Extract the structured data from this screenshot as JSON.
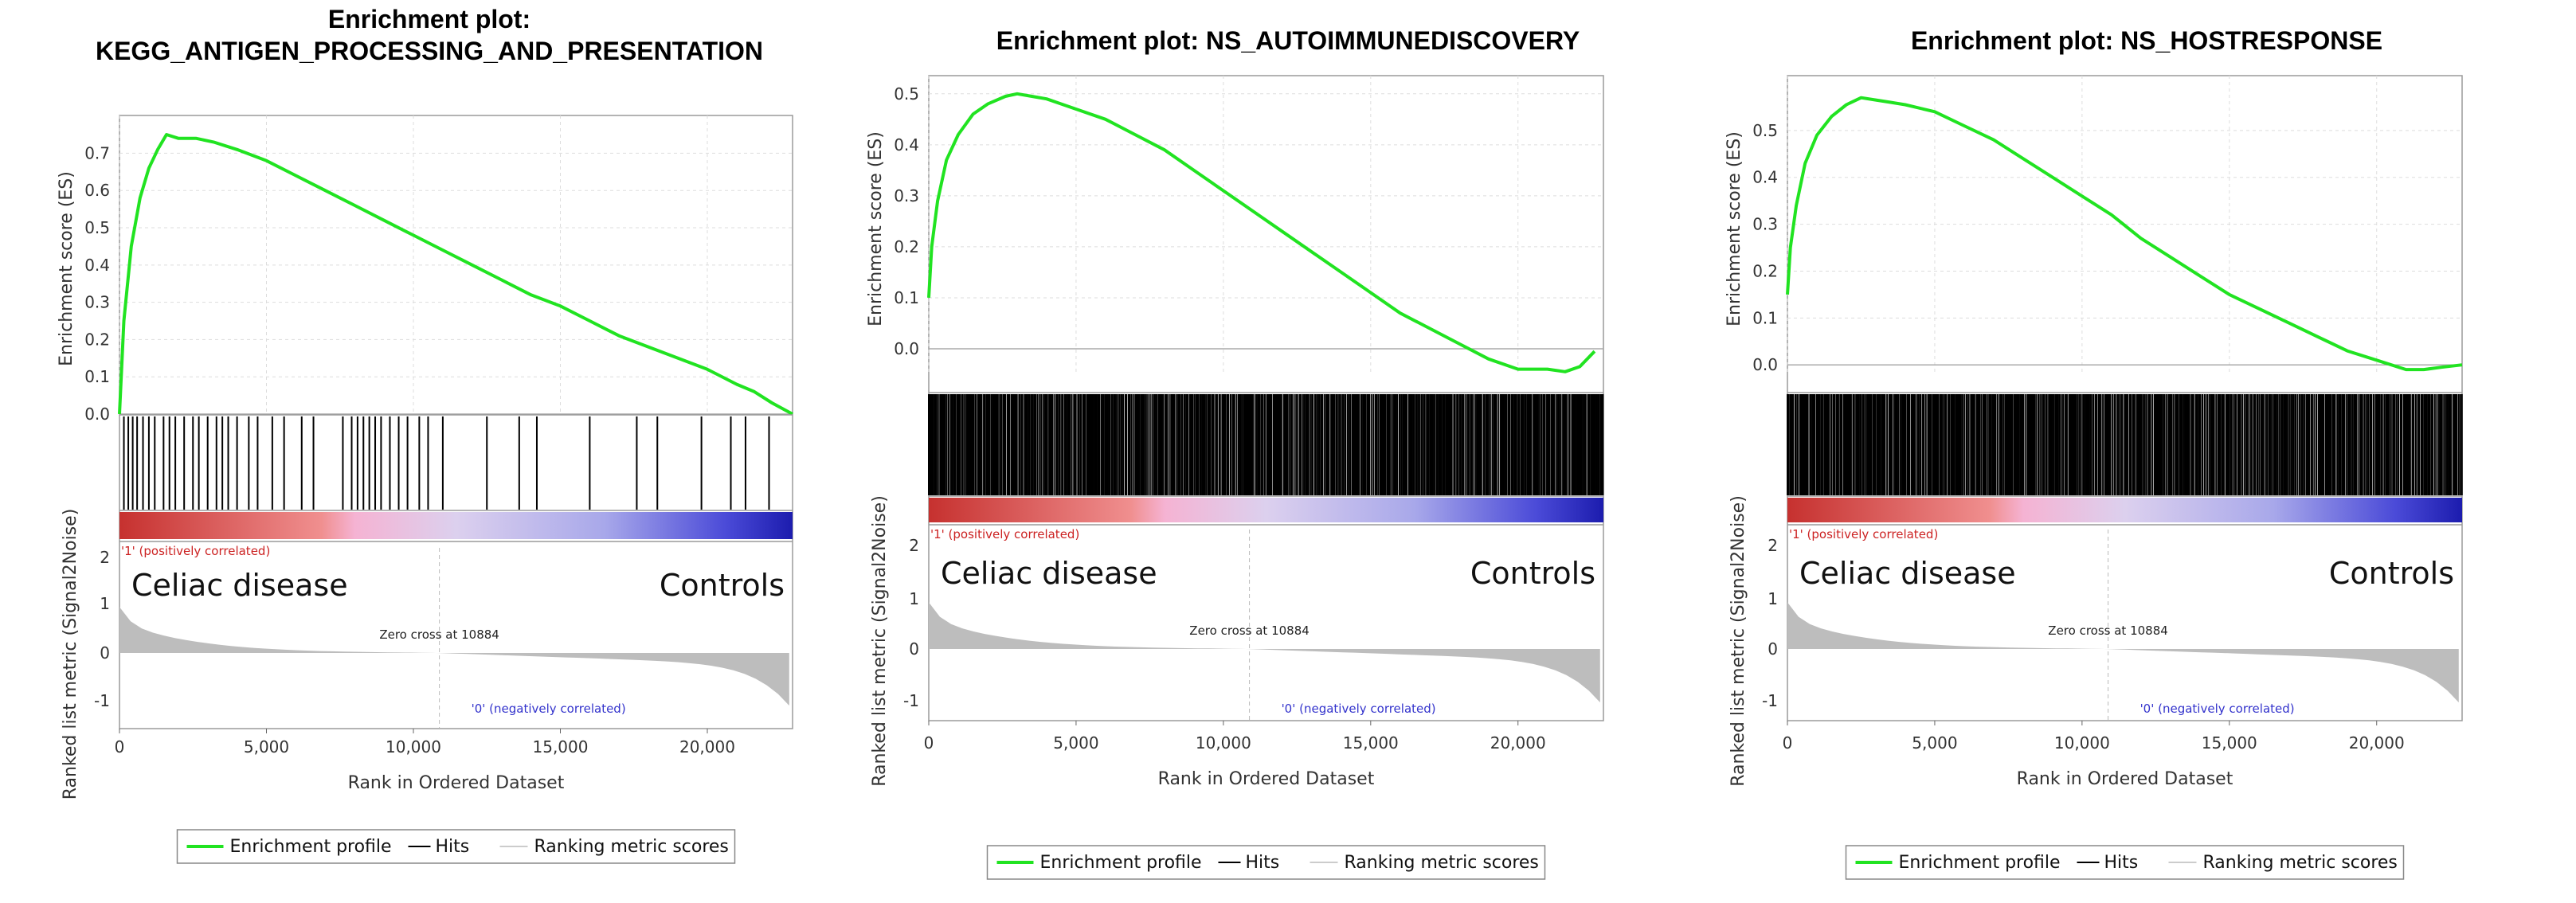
{
  "colors": {
    "profile": "#21e321",
    "hits": "#000000",
    "metric": "#bdbdbd",
    "positive_label": "#cc2222",
    "negative_label": "#3333cc"
  },
  "panels": [
    {
      "title_line1": "Enrichment plot:",
      "title_line2": "KEGG_ANTIGEN_PROCESSING_AND_PRESENTATION",
      "es_ticks": [
        "0.0",
        "0.1",
        "0.2",
        "0.3",
        "0.4",
        "0.5",
        "0.6",
        "0.7"
      ],
      "metric_ticks": [
        "2",
        "1",
        "0",
        "-1"
      ],
      "x_ticks": [
        "0",
        "5,000",
        "10,000",
        "15,000",
        "20,000"
      ],
      "ylabel_es": "Enrichment score (ES)",
      "ylabel_metric": "Ranked list metric (Signal2Noise)",
      "xlabel": "Rank in Ordered Dataset",
      "positive_label": "'1' (positively correlated)",
      "negative_label": "'0' (negatively correlated)",
      "zero_cross": "Zero cross at 10884",
      "group_left": "Celiac disease",
      "group_right": "Controls",
      "legend": [
        "Enrichment profile",
        "Hits",
        "Ranking metric scores"
      ]
    },
    {
      "title_line1": "Enrichment plot: NS_AUTOIMMUNEDISCOVERY",
      "title_line2": "",
      "es_ticks": [
        "0.0",
        "0.1",
        "0.2",
        "0.3",
        "0.4",
        "0.5"
      ],
      "metric_ticks": [
        "2",
        "1",
        "0",
        "-1"
      ],
      "x_ticks": [
        "0",
        "5,000",
        "10,000",
        "15,000",
        "20,000"
      ],
      "ylabel_es": "Enrichment score (ES)",
      "ylabel_metric": "Ranked list metric (Signal2Noise)",
      "xlabel": "Rank in Ordered Dataset",
      "positive_label": "'1' (positively correlated)",
      "negative_label": "'0' (negatively correlated)",
      "zero_cross": "Zero cross at 10884",
      "group_left": "Celiac disease",
      "group_right": "Controls",
      "legend": [
        "Enrichment profile",
        "Hits",
        "Ranking metric scores"
      ]
    },
    {
      "title_line1": "Enrichment plot: NS_HOSTRESPONSE",
      "title_line2": "",
      "es_ticks": [
        "0.0",
        "0.1",
        "0.2",
        "0.3",
        "0.4",
        "0.5"
      ],
      "metric_ticks": [
        "2",
        "1",
        "0",
        "-1"
      ],
      "x_ticks": [
        "0",
        "5,000",
        "10,000",
        "15,000",
        "20,000"
      ],
      "ylabel_es": "Enrichment score (ES)",
      "ylabel_metric": "Ranked list metric (Signal2Noise)",
      "xlabel": "Rank in Ordered Dataset",
      "positive_label": "'1' (positively correlated)",
      "negative_label": "'0' (negatively correlated)",
      "zero_cross": "Zero cross at 10884",
      "group_left": "Celiac disease",
      "group_right": "Controls",
      "legend": [
        "Enrichment profile",
        "Hits",
        "Ranking metric scores"
      ]
    }
  ],
  "chart_data": [
    {
      "type": "line",
      "title": "Enrichment plot: KEGG_ANTIGEN_PROCESSING_AND_PRESENTATION",
      "xlabel": "Rank in Ordered Dataset",
      "ylabel": "Enrichment score (ES)",
      "xlim": [
        0,
        22900
      ],
      "ylim": [
        0,
        0.78
      ],
      "grid": true,
      "legend_position": "bottom",
      "series": [
        {
          "name": "Enrichment profile",
          "x": [
            0,
            150,
            400,
            700,
            1000,
            1300,
            1600,
            2000,
            2600,
            3200,
            4000,
            5000,
            6000,
            7000,
            8000,
            9000,
            10000,
            11000,
            12000,
            13000,
            14000,
            15000,
            16000,
            17000,
            18000,
            19000,
            20000,
            21000,
            21600,
            22200,
            22900
          ],
          "y": [
            0.0,
            0.25,
            0.45,
            0.58,
            0.66,
            0.71,
            0.75,
            0.74,
            0.74,
            0.73,
            0.71,
            0.68,
            0.64,
            0.6,
            0.56,
            0.52,
            0.48,
            0.44,
            0.4,
            0.36,
            0.32,
            0.29,
            0.25,
            0.21,
            0.18,
            0.15,
            0.12,
            0.08,
            0.06,
            0.03,
            0.0
          ]
        },
        {
          "name": "Hits",
          "x": [
            150,
            300,
            450,
            600,
            800,
            1000,
            1200,
            1500,
            1700,
            1900,
            2200,
            2500,
            2700,
            3000,
            3300,
            3500,
            3700,
            4000,
            4400,
            4700,
            5200,
            5600,
            6200,
            6600,
            7600,
            7900,
            8100,
            8300,
            8500,
            8700,
            8900,
            9200,
            9500,
            9800,
            10200,
            10500,
            11000,
            12500,
            13600,
            14200,
            16000,
            17600,
            18300,
            19800,
            20800,
            21300,
            22100
          ]
        }
      ],
      "metric_panel": {
        "ylabel": "Ranked list metric (Signal2Noise)",
        "ylim": [
          -1.5,
          2.2
        ],
        "zero_cross": 10884,
        "start": 1.4,
        "end": -1.3
      }
    },
    {
      "type": "line",
      "title": "Enrichment plot: NS_AUTOIMMUNEDISCOVERY",
      "xlabel": "Rank in Ordered Dataset",
      "ylabel": "Enrichment score (ES)",
      "xlim": [
        0,
        22900
      ],
      "ylim": [
        -0.05,
        0.52
      ],
      "grid": true,
      "legend_position": "bottom",
      "series": [
        {
          "name": "Enrichment profile",
          "x": [
            0,
            100,
            300,
            600,
            1000,
            1500,
            2000,
            2600,
            3000,
            3500,
            4000,
            5000,
            6000,
            7000,
            8000,
            9000,
            10000,
            11000,
            12000,
            13000,
            14000,
            15000,
            16000,
            17000,
            18000,
            19000,
            20000,
            21000,
            21600,
            22100,
            22600
          ],
          "y": [
            0.1,
            0.2,
            0.29,
            0.37,
            0.42,
            0.46,
            0.48,
            0.495,
            0.5,
            0.495,
            0.49,
            0.47,
            0.45,
            0.42,
            0.39,
            0.35,
            0.31,
            0.27,
            0.23,
            0.19,
            0.15,
            0.11,
            0.07,
            0.04,
            0.01,
            -0.02,
            -0.04,
            -0.04,
            -0.045,
            -0.035,
            -0.005
          ]
        },
        {
          "name": "Hits",
          "x": [],
          "note": "dense"
        }
      ],
      "metric_panel": {
        "ylabel": "Ranked list metric (Signal2Noise)",
        "ylim": [
          -1.5,
          2.2
        ],
        "zero_cross": 10884,
        "start": 1.4,
        "end": -1.3
      }
    },
    {
      "type": "line",
      "title": "Enrichment plot: NS_HOSTRESPONSE",
      "xlabel": "Rank in Ordered Dataset",
      "ylabel": "Enrichment score (ES)",
      "xlim": [
        0,
        22900
      ],
      "ylim": [
        -0.02,
        0.6
      ],
      "grid": true,
      "legend_position": "bottom",
      "series": [
        {
          "name": "Enrichment profile",
          "x": [
            0,
            100,
            300,
            600,
            1000,
            1500,
            2000,
            2500,
            3000,
            3500,
            4000,
            5000,
            6000,
            7000,
            8000,
            9000,
            10000,
            11000,
            12000,
            13000,
            14000,
            15000,
            16000,
            17000,
            18000,
            19000,
            20000,
            21000,
            21600,
            22200,
            22900
          ],
          "y": [
            0.15,
            0.25,
            0.34,
            0.43,
            0.49,
            0.53,
            0.555,
            0.57,
            0.565,
            0.56,
            0.555,
            0.54,
            0.51,
            0.48,
            0.44,
            0.4,
            0.36,
            0.32,
            0.27,
            0.23,
            0.19,
            0.15,
            0.12,
            0.09,
            0.06,
            0.03,
            0.01,
            -0.01,
            -0.01,
            -0.005,
            0.0
          ]
        },
        {
          "name": "Hits",
          "x": [],
          "note": "dense"
        }
      ],
      "metric_panel": {
        "ylabel": "Ranked list metric (Signal2Noise)",
        "ylim": [
          -1.5,
          2.2
        ],
        "zero_cross": 10884,
        "start": 1.4,
        "end": -1.3
      }
    }
  ]
}
